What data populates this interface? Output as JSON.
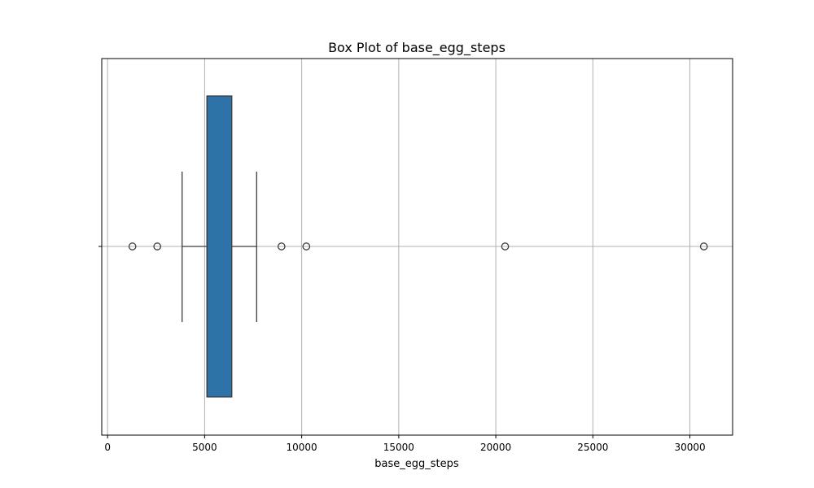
{
  "chart_data": {
    "type": "box",
    "title": "Box Plot of base_egg_steps",
    "xlabel": "base_egg_steps",
    "ylabel": "",
    "xlim": [
      -300,
      32200
    ],
    "x_ticks": [
      0,
      5000,
      10000,
      15000,
      20000,
      25000,
      30000
    ],
    "x_tick_labels": [
      "0",
      "5000",
      "10000",
      "15000",
      "20000",
      "25000",
      "30000"
    ],
    "grid": true,
    "orientation": "horizontal",
    "box": {
      "q1": 5120,
      "median": 5120,
      "q3": 6400,
      "whisker_low": 3840,
      "whisker_high": 7680
    },
    "outliers": [
      1280,
      2560,
      8960,
      10240,
      20480,
      30720
    ],
    "colors": {
      "box_fill": "#2e73a8",
      "line": "#3d3d3d",
      "grid": "#b0b0b0",
      "axis": "#000000"
    }
  }
}
